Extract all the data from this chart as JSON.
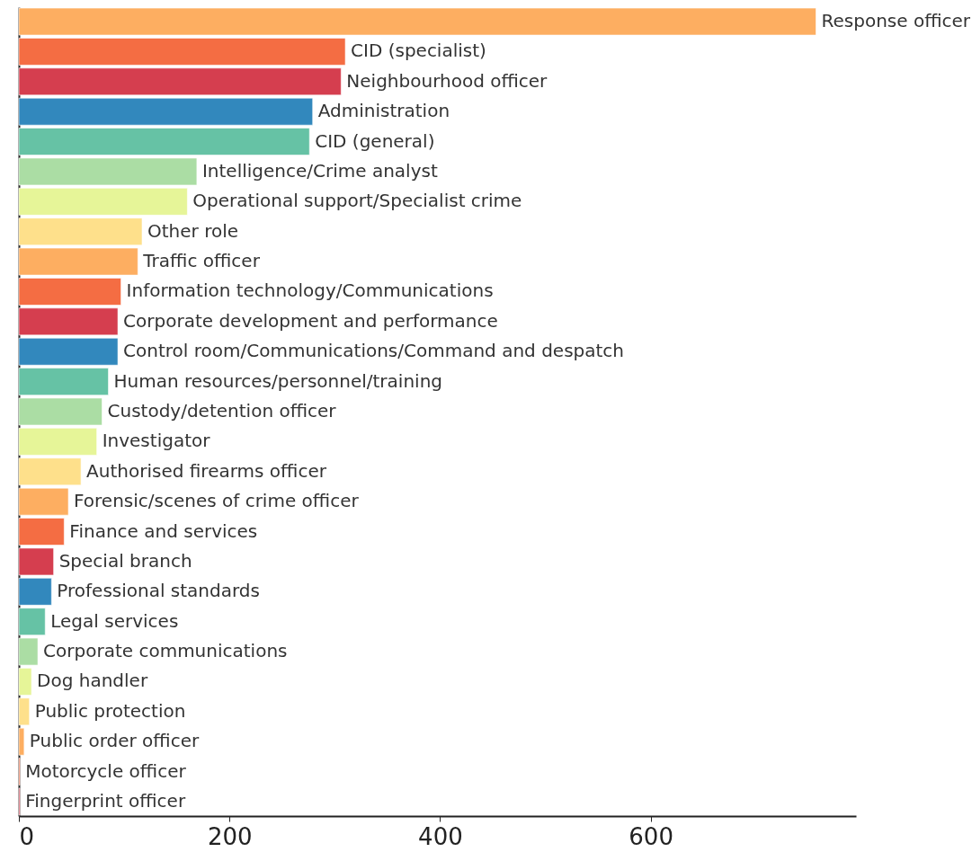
{
  "chart_data": {
    "type": "bar",
    "orientation": "horizontal",
    "categories": [
      "Response officer",
      "CID (specialist)",
      "Neighbourhood officer",
      "Administration",
      "CID (general)",
      "Intelligence/Crime analyst",
      "Operational support/Specialist crime",
      "Other role",
      "Traffic officer",
      "Information technology/Communications",
      "Corporate development and performance",
      "Control room/Communications/Command and despatch",
      "Human resources/personnel/training",
      "Custody/detention officer",
      "Investigator",
      "Authorised firearms officer",
      "Forensic/scenes of crime officer",
      "Finance and services",
      "Special branch",
      "Professional standards",
      "Legal services",
      "Corporate communications",
      "Dog handler",
      "Public protection",
      "Public order officer",
      "Motorcycle officer",
      "Fingerprint officer"
    ],
    "values": [
      757,
      310,
      306,
      279,
      276,
      169,
      160,
      117,
      113,
      97,
      94,
      94,
      85,
      79,
      74,
      59,
      47,
      43,
      33,
      31,
      25,
      18,
      12,
      10,
      5,
      1,
      1
    ],
    "colors": [
      "#fdae61",
      "#f46d43",
      "#d53e4f",
      "#3288bd",
      "#66c2a5",
      "#abdda4",
      "#e6f598",
      "#fee08b",
      "#fdae61",
      "#f46d43",
      "#d53e4f",
      "#3288bd",
      "#66c2a5",
      "#abdda4",
      "#e6f598",
      "#fee08b",
      "#fdae61",
      "#f46d43",
      "#d53e4f",
      "#3288bd",
      "#66c2a5",
      "#abdda4",
      "#e6f598",
      "#fee08b",
      "#fdae61",
      "#f46d43",
      "#d53e4f"
    ],
    "xlim": [
      0,
      795
    ],
    "xticks": [
      0,
      200,
      400,
      600
    ],
    "tick_labels": "x",
    "grid": false
  }
}
